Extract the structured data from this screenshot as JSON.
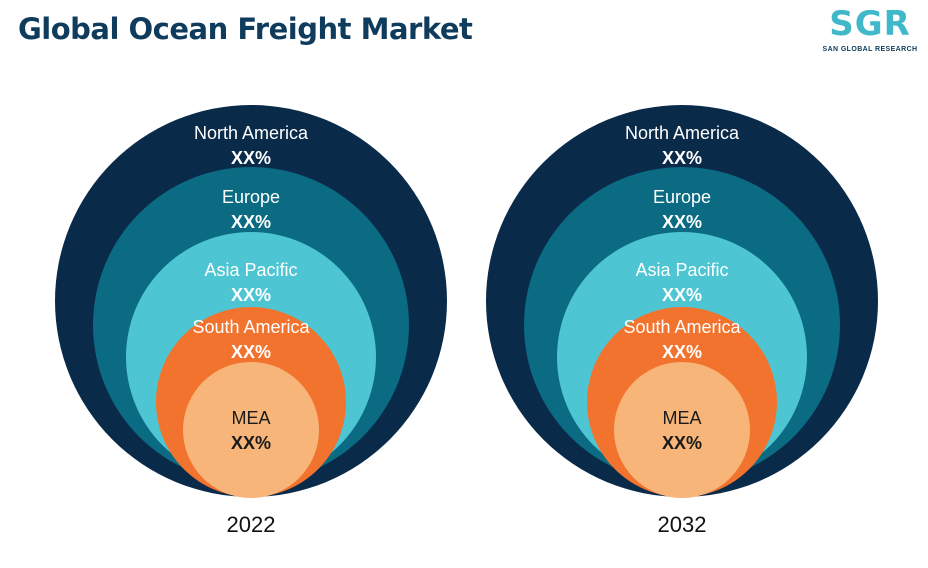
{
  "header": {
    "title": "Global Ocean Freight Market",
    "logo_mark": "SGR",
    "logo_subtitle": "SAN GLOBAL RESEARCH"
  },
  "chart_data": {
    "type": "nested-circles",
    "title": "Global Ocean Freight Market",
    "panels": [
      {
        "year": "2022",
        "segments": [
          {
            "name": "North America",
            "value": "XX%",
            "color": "#0a2a4a",
            "text_color": "#ffffff"
          },
          {
            "name": "Europe",
            "value": "XX%",
            "color": "#0a6b82",
            "text_color": "#ffffff"
          },
          {
            "name": "Asia Pacific",
            "value": "XX%",
            "color": "#4dc5d2",
            "text_color": "#ffffff"
          },
          {
            "name": "South America",
            "value": "XX%",
            "color": "#f2732e",
            "text_color": "#ffffff"
          },
          {
            "name": "MEA",
            "value": "XX%",
            "color": "#f7b57a",
            "text_color": "#1a1a1a"
          }
        ]
      },
      {
        "year": "2032",
        "segments": [
          {
            "name": "North America",
            "value": "XX%",
            "color": "#0a2a4a",
            "text_color": "#ffffff"
          },
          {
            "name": "Europe",
            "value": "XX%",
            "color": "#0a6b82",
            "text_color": "#ffffff"
          },
          {
            "name": "Asia Pacific",
            "value": "XX%",
            "color": "#4dc5d2",
            "text_color": "#ffffff"
          },
          {
            "name": "South America",
            "value": "XX%",
            "color": "#f2732e",
            "text_color": "#ffffff"
          },
          {
            "name": "MEA",
            "value": "XX%",
            "color": "#f7b57a",
            "text_color": "#1a1a1a"
          }
        ]
      }
    ]
  }
}
